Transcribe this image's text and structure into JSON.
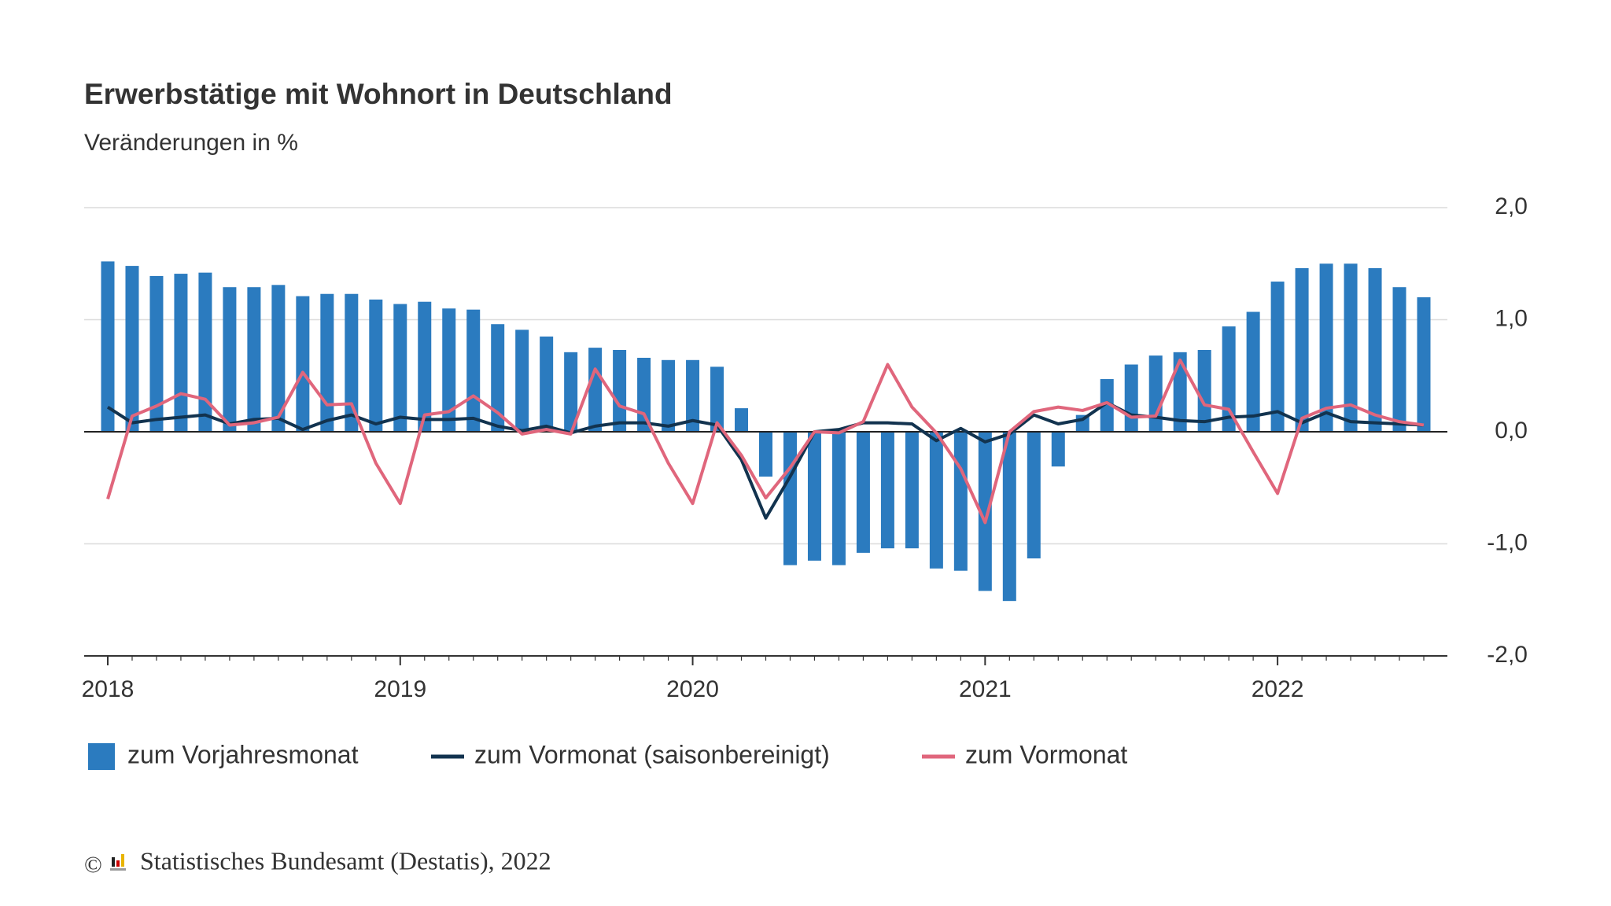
{
  "chart_data": {
    "type": "bar",
    "title": "Erwerbstätige mit Wohnort in Deutschland",
    "subtitle": "Veränderungen in %",
    "categories": [
      "2018",
      null,
      null,
      null,
      null,
      null,
      null,
      null,
      null,
      null,
      null,
      null,
      "2019",
      null,
      null,
      null,
      null,
      null,
      null,
      null,
      null,
      null,
      null,
      null,
      "2020",
      null,
      null,
      null,
      null,
      null,
      null,
      null,
      null,
      null,
      null,
      null,
      "2021",
      null,
      null,
      null,
      null,
      null,
      null,
      null,
      null,
      null,
      null,
      null,
      "2022",
      null,
      null,
      null,
      null,
      null,
      null
    ],
    "ylim": [
      -2,
      2
    ],
    "yticks": [
      {
        "value": -2,
        "label": "-2,0"
      },
      {
        "value": -1,
        "label": "-1,0"
      },
      {
        "value": 0,
        "label": "0,0"
      },
      {
        "value": 1,
        "label": "1,0"
      },
      {
        "value": 2,
        "label": "2,0"
      }
    ],
    "grid": true,
    "legend": "bottom",
    "series": [
      {
        "name": "zum Vorjahresmonat",
        "type": "bar",
        "color": "#2b7bbf",
        "values": [
          1.52,
          1.48,
          1.39,
          1.41,
          1.42,
          1.29,
          1.29,
          1.31,
          1.21,
          1.23,
          1.23,
          1.18,
          1.14,
          1.16,
          1.1,
          1.09,
          0.96,
          0.91,
          0.85,
          0.71,
          0.75,
          0.73,
          0.66,
          0.64,
          0.64,
          0.58,
          0.21,
          -0.4,
          -1.19,
          -1.15,
          -1.19,
          -1.08,
          -1.04,
          -1.04,
          -1.22,
          -1.24,
          -1.42,
          -1.51,
          -1.13,
          -0.31,
          0.15,
          0.47,
          0.6,
          0.68,
          0.71,
          0.73,
          0.94,
          1.07,
          1.34,
          1.46,
          1.5,
          1.5,
          1.46,
          1.29,
          1.2
        ]
      },
      {
        "name": "zum Vormonat (saisonbereinigt)",
        "type": "line",
        "color": "#12334f",
        "values": [
          0.22,
          0.08,
          0.11,
          0.13,
          0.15,
          0.07,
          0.11,
          0.12,
          0.02,
          0.1,
          0.15,
          0.07,
          0.13,
          0.11,
          0.11,
          0.12,
          0.05,
          0.01,
          0.05,
          -0.01,
          0.05,
          0.08,
          0.08,
          0.05,
          0.1,
          0.06,
          -0.25,
          -0.77,
          -0.4,
          0.0,
          0.02,
          0.08,
          0.08,
          0.07,
          -0.08,
          0.03,
          -0.09,
          -0.02,
          0.15,
          0.07,
          0.11,
          0.26,
          0.15,
          0.13,
          0.1,
          0.09,
          0.13,
          0.14,
          0.18,
          0.08,
          0.17,
          0.09,
          0.08,
          0.07,
          0.06
        ]
      },
      {
        "name": "zum Vormonat",
        "type": "line",
        "color": "#e0667c",
        "values": [
          -0.6,
          0.14,
          0.23,
          0.34,
          0.29,
          0.06,
          0.08,
          0.13,
          0.53,
          0.24,
          0.25,
          -0.28,
          -0.64,
          0.15,
          0.18,
          0.32,
          0.17,
          -0.02,
          0.02,
          -0.02,
          0.56,
          0.23,
          0.16,
          -0.28,
          -0.64,
          0.08,
          -0.21,
          -0.59,
          -0.32,
          0.0,
          -0.01,
          0.09,
          0.6,
          0.22,
          -0.01,
          -0.33,
          -0.81,
          0.0,
          0.18,
          0.22,
          0.19,
          0.26,
          0.13,
          0.14,
          0.64,
          0.24,
          0.2,
          -0.18,
          -0.55,
          0.12,
          0.21,
          0.24,
          0.15,
          0.09,
          0.06
        ]
      }
    ]
  },
  "footer": {
    "copyright": "©",
    "source": "Statistisches Bundesamt (Destatis), 2022"
  }
}
